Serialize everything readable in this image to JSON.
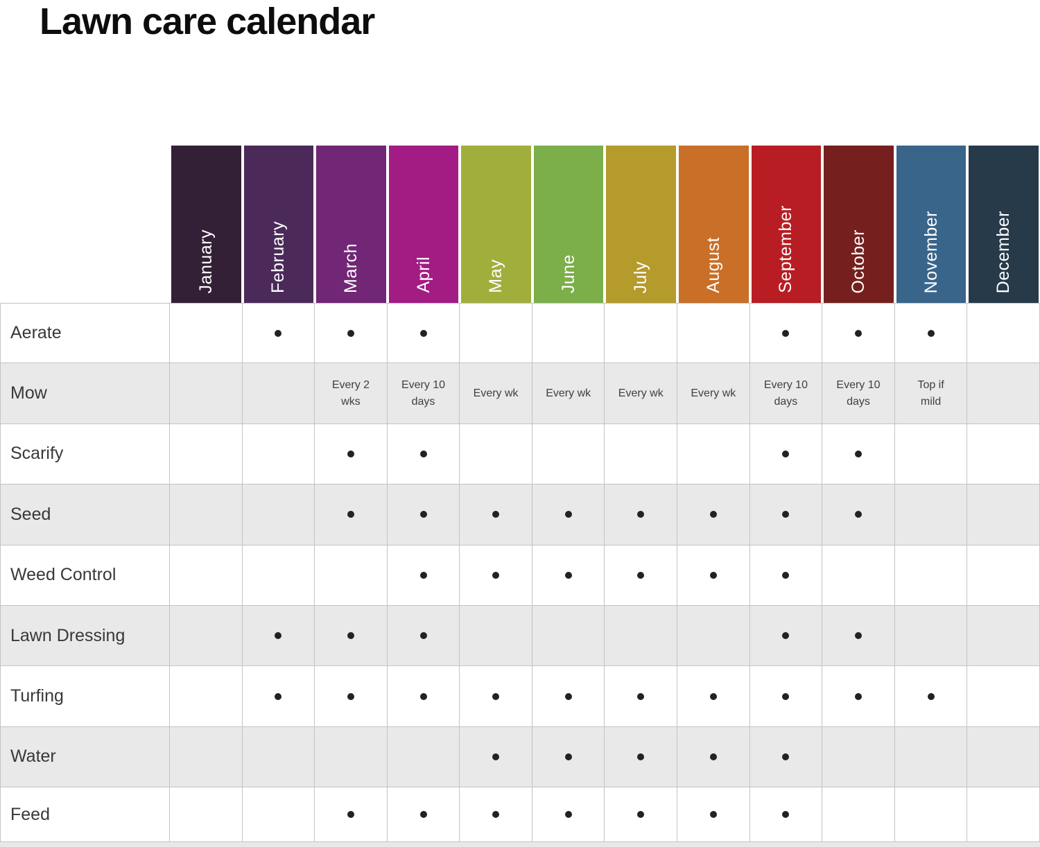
{
  "title": "Lawn care calendar",
  "colors": {
    "background": "#ffffff",
    "grid_border": "#c3c3c3",
    "row_alternate": "#e9e9e9",
    "dot": "#222222",
    "title_text": "#0d0d0d",
    "label_text": "#383838",
    "month_label_text": "#ffffff"
  },
  "chart_data": {
    "type": "table",
    "title": "Lawn care calendar",
    "dot_marker": "•",
    "columns": [
      "January",
      "February",
      "March",
      "April",
      "May",
      "June",
      "July",
      "August",
      "September",
      "October",
      "November",
      "December"
    ],
    "column_colors": [
      "#342036",
      "#4b2a59",
      "#722676",
      "#a21c84",
      "#a1ae3c",
      "#7cae49",
      "#b59a2c",
      "#c96f27",
      "#b81d23",
      "#75201e",
      "#3a658b",
      "#273a4a"
    ],
    "rows": [
      {
        "label": "Aerate",
        "cells": [
          "",
          "•",
          "•",
          "•",
          "",
          "",
          "",
          "",
          "•",
          "•",
          "•",
          ""
        ]
      },
      {
        "label": "Mow",
        "cells": [
          "",
          "",
          "Every 2 wks",
          "Every 10 days",
          "Every wk",
          "Every wk",
          "Every wk",
          "Every wk",
          "Every 10 days",
          "Every 10 days",
          "Top if mild",
          ""
        ]
      },
      {
        "label": "Scarify",
        "cells": [
          "",
          "",
          "•",
          "•",
          "",
          "",
          "",
          "",
          "•",
          "•",
          "",
          ""
        ]
      },
      {
        "label": "Seed",
        "cells": [
          "",
          "",
          "•",
          "•",
          "•",
          "•",
          "•",
          "•",
          "•",
          "•",
          "",
          ""
        ]
      },
      {
        "label": "Weed Control",
        "cells": [
          "",
          "",
          "",
          "•",
          "•",
          "•",
          "•",
          "•",
          "•",
          "",
          "",
          ""
        ]
      },
      {
        "label": "Lawn Dressing",
        "cells": [
          "",
          "•",
          "•",
          "•",
          "",
          "",
          "",
          "",
          "•",
          "•",
          "",
          ""
        ]
      },
      {
        "label": "Turfing",
        "cells": [
          "",
          "•",
          "•",
          "•",
          "•",
          "•",
          "•",
          "•",
          "•",
          "•",
          "•",
          ""
        ]
      },
      {
        "label": "Water",
        "cells": [
          "",
          "",
          "",
          "",
          "•",
          "•",
          "•",
          "•",
          "•",
          "",
          "",
          ""
        ]
      },
      {
        "label": "Feed",
        "cells": [
          "",
          "",
          "•",
          "•",
          "•",
          "•",
          "•",
          "•",
          "•",
          "",
          "",
          ""
        ]
      }
    ]
  }
}
